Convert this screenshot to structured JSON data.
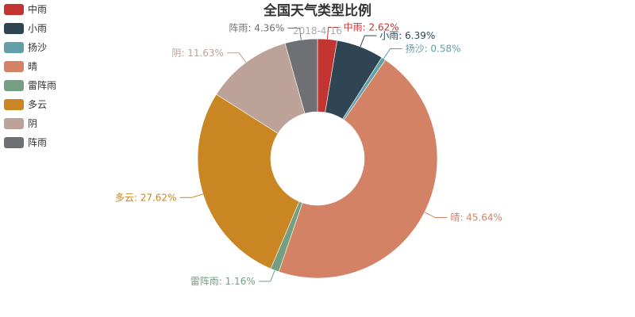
{
  "chart_data": {
    "type": "pie",
    "donut": true,
    "title": "全国天气类型比例",
    "subtitle": "2018-4-16",
    "legend_position": "top-left",
    "start_angle_deg": 90,
    "clockwise": true,
    "slices": [
      {
        "name": "中雨",
        "value": 2.62,
        "label": "中雨: 2.62%",
        "color": "#c23531"
      },
      {
        "name": "小雨",
        "value": 6.39,
        "label": "小雨: 6.39%",
        "color": "#2f4554"
      },
      {
        "name": "扬沙",
        "value": 0.58,
        "label": "扬沙: 0.58%",
        "color": "#61a0a8"
      },
      {
        "name": "晴",
        "value": 45.64,
        "label": "晴: 45.64%",
        "color": "#d48265"
      },
      {
        "name": "雷阵雨",
        "value": 1.16,
        "label": "雷阵雨: 1.16%",
        "color": "#749f83"
      },
      {
        "name": "多云",
        "value": 27.62,
        "label": "多云: 27.62%",
        "color": "#ca8622"
      },
      {
        "name": "阴",
        "value": 11.63,
        "label": "阴: 11.63%",
        "color": "#bda29a"
      },
      {
        "name": "阵雨",
        "value": 4.36,
        "label": "阵雨: 4.36%",
        "color": "#6e7074"
      }
    ]
  }
}
